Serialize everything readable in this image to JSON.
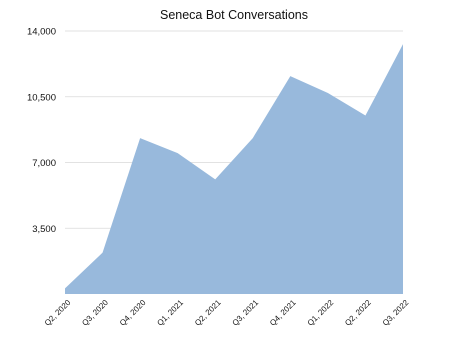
{
  "chart_data": {
    "type": "area",
    "title": "Seneca Bot Conversations",
    "xlabel": "",
    "ylabel": "",
    "categories": [
      "Q2, 2020",
      "Q3, 2020",
      "Q4, 2020",
      "Q1, 2021",
      "Q2, 2021",
      "Q3, 2021",
      "Q4, 2021",
      "Q1, 2022",
      "Q2, 2022",
      "Q3, 2022"
    ],
    "values": [
      300,
      2200,
      8300,
      7500,
      6100,
      8300,
      11600,
      10700,
      9500,
      13300
    ],
    "ylim": [
      0,
      14000
    ],
    "y_ticks": [
      3500,
      7000,
      10500,
      14000
    ],
    "y_tick_labels": [
      "3,500",
      "7,000",
      "10,500",
      "14,000"
    ],
    "grid": true,
    "fill_color": "#98b9dc"
  }
}
